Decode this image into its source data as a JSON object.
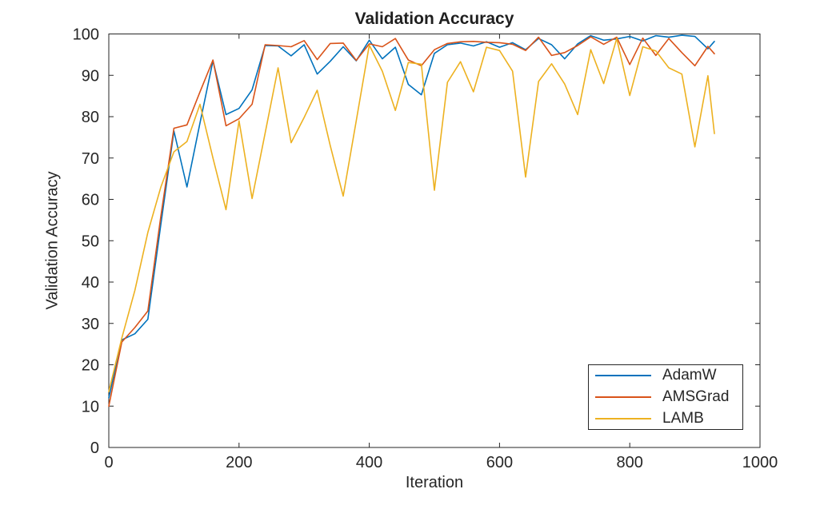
{
  "chart_data": {
    "type": "line",
    "title": "Validation Accuracy",
    "xlabel": "Iteration",
    "ylabel": "Validation Accuracy",
    "xlim": [
      0,
      1000
    ],
    "ylim": [
      0,
      100
    ],
    "x_ticks": [
      0,
      200,
      400,
      600,
      800,
      1000
    ],
    "y_ticks": [
      0,
      10,
      20,
      30,
      40,
      50,
      60,
      70,
      80,
      90,
      100
    ],
    "grid": false,
    "box": true,
    "tick_direction": "in",
    "axis_color": "#262626",
    "legend_position": "lower-right",
    "x": [
      0,
      20,
      40,
      60,
      80,
      100,
      120,
      140,
      160,
      180,
      200,
      220,
      240,
      260,
      280,
      300,
      320,
      340,
      360,
      380,
      400,
      420,
      440,
      460,
      480,
      500,
      520,
      540,
      560,
      580,
      600,
      620,
      640,
      660,
      680,
      700,
      720,
      740,
      760,
      780,
      800,
      820,
      840,
      860,
      880,
      900,
      920,
      930
    ],
    "series": [
      {
        "name": "AdamW",
        "color": "#0072BD",
        "values": [
          12,
          26,
          27.5,
          31,
          54,
          76.5,
          63,
          78.5,
          93.5,
          80.5,
          82,
          86.5,
          97.2,
          97.1,
          94.7,
          97.4,
          90.3,
          93.4,
          96.9,
          93.5,
          98.5,
          94,
          96.8,
          87.8,
          85.3,
          95.3,
          97.4,
          97.8,
          97.1,
          98.1,
          96.8,
          97.9,
          96.2,
          98.9,
          97.4,
          94,
          97.6,
          99.6,
          98.5,
          98.8,
          99.4,
          98.3,
          99.6,
          99.2,
          99.7,
          99.4,
          96.4,
          98.2
        ]
      },
      {
        "name": "AMSGrad",
        "color": "#D95319",
        "values": [
          10,
          25.5,
          29,
          33,
          56,
          77.2,
          78,
          86,
          93.7,
          77.8,
          79.5,
          83,
          97.4,
          97.2,
          96.9,
          98.4,
          93.8,
          97.7,
          97.8,
          93.6,
          97.6,
          96.9,
          98.9,
          93.7,
          92.3,
          96.2,
          97.7,
          98.1,
          98.2,
          98,
          97.9,
          97.5,
          96,
          99.2,
          94.8,
          95.5,
          97.2,
          99.3,
          97.5,
          99.2,
          92.6,
          99,
          94.8,
          98.9,
          95.5,
          92.3,
          97,
          95.2
        ]
      },
      {
        "name": "LAMB",
        "color": "#EDB120",
        "values": [
          13.5,
          26.5,
          38,
          52,
          63,
          71.5,
          74,
          83,
          70,
          57.5,
          79,
          60.2,
          76,
          91.8,
          73.7,
          79.8,
          86.4,
          73,
          60.8,
          79,
          97.3,
          91,
          81.5,
          93.1,
          92.7,
          62.2,
          88.3,
          93.3,
          86,
          96.8,
          96,
          91,
          65.4,
          88.5,
          92.8,
          87.9,
          80.5,
          96.2,
          88,
          98.9,
          85.1,
          96.9,
          95.9,
          91.8,
          90.3,
          72.7,
          89.9,
          75.9
        ]
      }
    ]
  }
}
